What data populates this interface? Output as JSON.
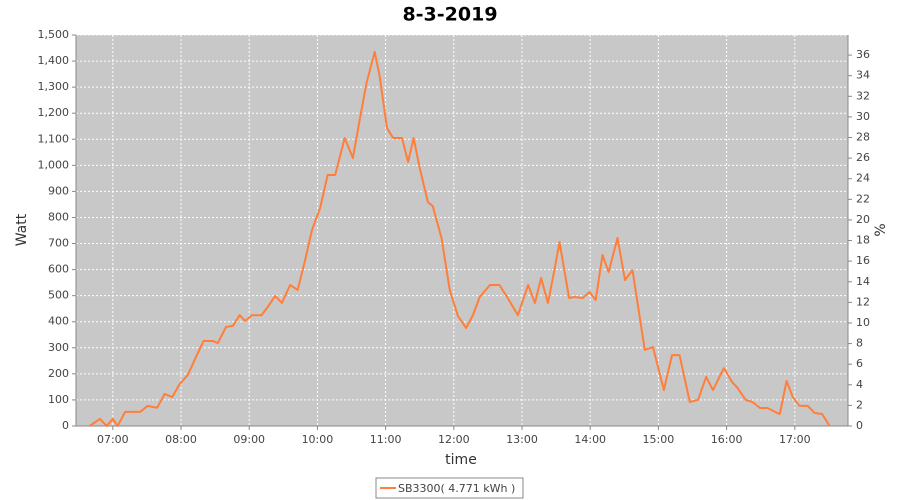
{
  "chart_data": {
    "type": "line",
    "title": "8-3-2019",
    "x_label": "time",
    "y_label": "Watt",
    "y2_label": "%",
    "x": [
      6.66,
      6.81,
      6.91,
      7.0,
      7.07,
      7.18,
      7.4,
      7.51,
      7.65,
      7.76,
      7.87,
      7.98,
      8.1,
      8.22,
      8.33,
      8.47,
      8.54,
      8.66,
      8.76,
      8.86,
      8.94,
      9.04,
      9.18,
      9.27,
      9.38,
      9.48,
      9.6,
      9.71,
      9.82,
      9.92,
      10.04,
      10.15,
      10.26,
      10.4,
      10.52,
      10.62,
      10.72,
      10.84,
      10.91,
      11.02,
      11.11,
      11.24,
      11.33,
      11.41,
      11.5,
      11.62,
      11.69,
      11.82,
      11.94,
      12.06,
      12.18,
      12.28,
      12.38,
      12.53,
      12.67,
      12.79,
      12.94,
      13.09,
      13.19,
      13.28,
      13.38,
      13.47,
      13.55,
      13.69,
      13.77,
      13.89,
      13.99,
      14.08,
      14.18,
      14.27,
      14.4,
      14.51,
      14.62,
      14.8,
      14.92,
      15.08,
      15.2,
      15.31,
      15.46,
      15.58,
      15.7,
      15.8,
      15.96,
      16.08,
      16.16,
      16.28,
      16.38,
      16.49,
      16.6,
      16.71,
      16.78,
      16.88,
      16.97,
      17.07,
      17.19,
      17.29,
      17.4,
      17.51
    ],
    "series": [
      {
        "name": "SB3300( 4.771 kWh )",
        "color": "#ff7f3a",
        "values": [
          0,
          27,
          0,
          27,
          0,
          54,
          54,
          77,
          70,
          123,
          111,
          161,
          196,
          265,
          326,
          326,
          318,
          380,
          384,
          425,
          403,
          425,
          425,
          456,
          499,
          472,
          541,
          522,
          637,
          752,
          836,
          963,
          963,
          1105,
          1028,
          1174,
          1316,
          1435,
          1346,
          1143,
          1105,
          1105,
          1013,
          1105,
          990,
          859,
          844,
          721,
          522,
          422,
          376,
          425,
          495,
          541,
          541,
          491,
          425,
          541,
          472,
          568,
          472,
          591,
          706,
          491,
          495,
          491,
          514,
          483,
          656,
          591,
          721,
          560,
          598,
          292,
          303,
          138,
          272,
          272,
          92,
          100,
          188,
          138,
          222,
          169,
          146,
          100,
          92,
          69,
          69,
          54,
          46,
          173,
          111,
          77,
          77,
          50,
          46,
          0
        ]
      }
    ],
    "xlim": [
      6.46,
      17.78
    ],
    "xticks": [
      {
        "value": 7,
        "label": "07:00"
      },
      {
        "value": 8,
        "label": "08:00"
      },
      {
        "value": 9,
        "label": "09:00"
      },
      {
        "value": 10,
        "label": "10:00"
      },
      {
        "value": 11,
        "label": "11:00"
      },
      {
        "value": 12,
        "label": "12:00"
      },
      {
        "value": 13,
        "label": "13:00"
      },
      {
        "value": 14,
        "label": "14:00"
      },
      {
        "value": 15,
        "label": "15:00"
      },
      {
        "value": 16,
        "label": "16:00"
      },
      {
        "value": 17,
        "label": "17:00"
      }
    ],
    "ylim": [
      0,
      1500
    ],
    "yticks": [
      0,
      100,
      200,
      300,
      400,
      500,
      600,
      700,
      800,
      900,
      {
        "value": 1000,
        "label": "1,000"
      },
      {
        "value": 1100,
        "label": "1,100"
      },
      {
        "value": 1200,
        "label": "1,200"
      },
      {
        "value": 1300,
        "label": "1,300"
      },
      {
        "value": 1400,
        "label": "1,400"
      },
      {
        "value": 1500,
        "label": "1,500"
      }
    ],
    "y2lim": [
      0,
      37.95
    ],
    "y2ticks": [
      0,
      2,
      4,
      6,
      8,
      10,
      12,
      14,
      16,
      18,
      20,
      22,
      24,
      26,
      28,
      30,
      32,
      34,
      36
    ],
    "grid": true
  }
}
